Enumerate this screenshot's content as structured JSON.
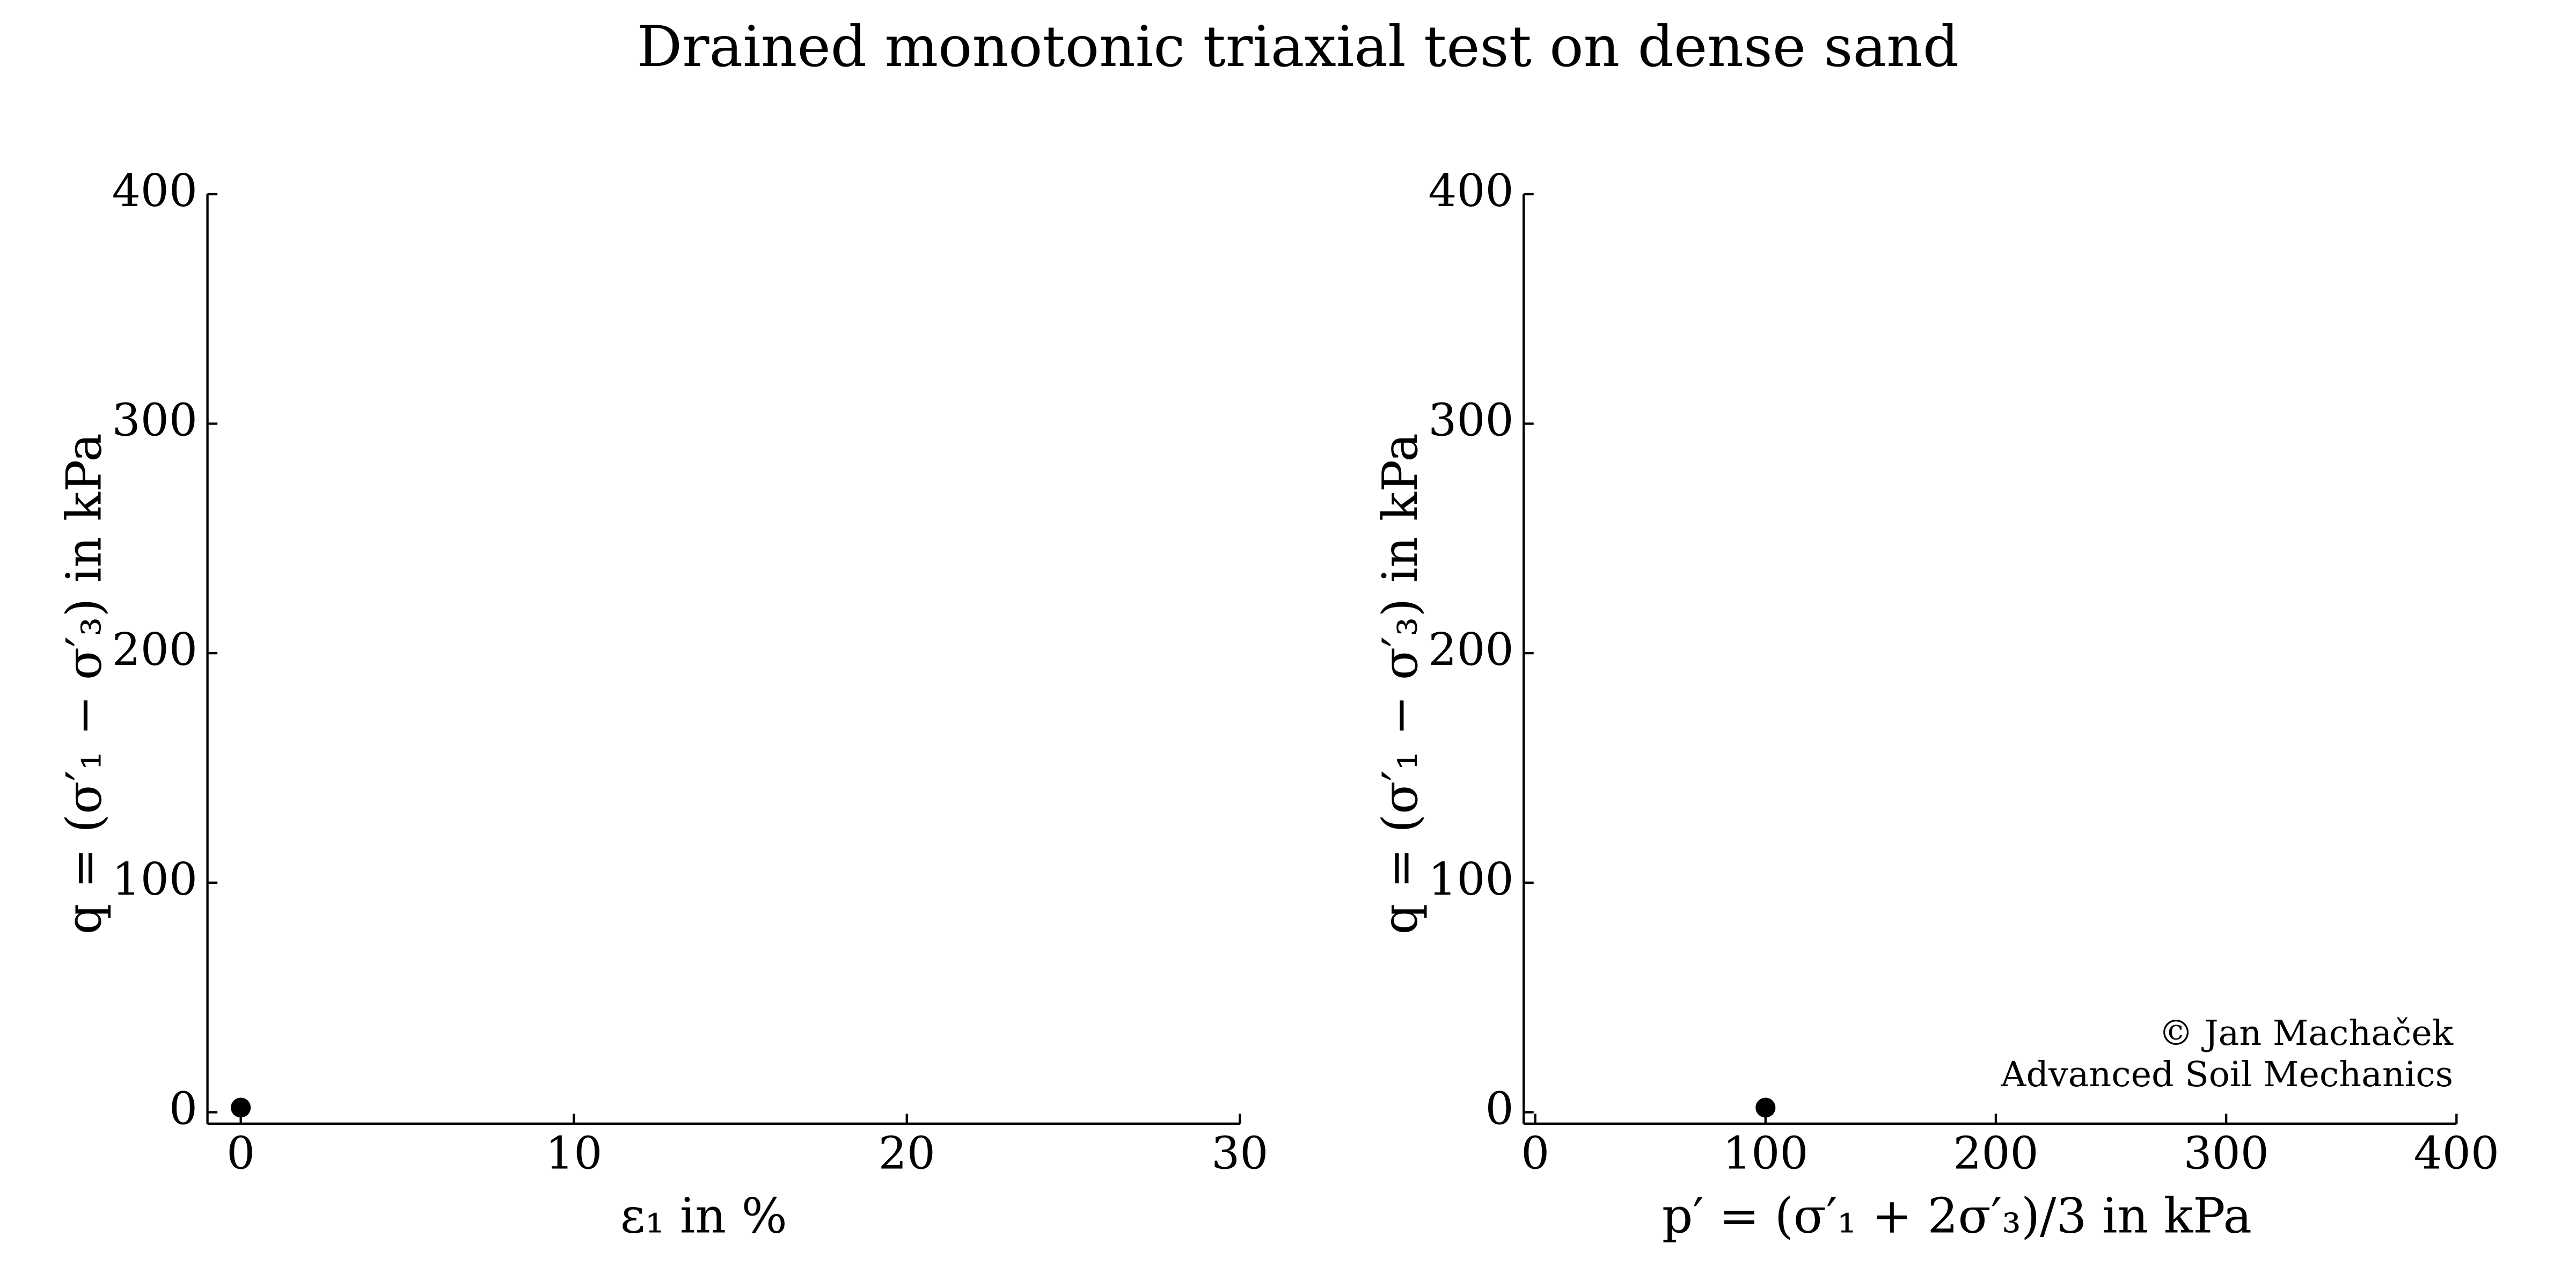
{
  "title": "Drained monotonic triaxial test on dense sand",
  "chart_data": [
    {
      "type": "scatter",
      "xlabel": "ε₁ in %",
      "ylabel": "q = (σ′₁ − σ′₃) in kPa",
      "x": [
        0
      ],
      "values": [
        2
      ],
      "color": "#000000",
      "xlim": [
        -1,
        30
      ],
      "xticks": [
        0,
        10,
        20,
        30
      ],
      "ylim": [
        -5,
        400
      ],
      "yticks": [
        0,
        100,
        200,
        300,
        400
      ]
    },
    {
      "type": "scatter",
      "xlabel": "p′ = (σ′₁ + 2σ′₃)/3 in kPa",
      "ylabel": "q = (σ′₁ − σ′₃) in kPa",
      "x": [
        100
      ],
      "values": [
        2
      ],
      "color": "#000000",
      "xlim": [
        -5,
        400
      ],
      "xticks": [
        0,
        100,
        200,
        300,
        400
      ],
      "ylim": [
        -5,
        400
      ],
      "yticks": [
        0,
        100,
        200,
        300,
        400
      ],
      "annotations": [
        "© Jan Machaček",
        "Advanced Soil Mechanics"
      ]
    }
  ]
}
